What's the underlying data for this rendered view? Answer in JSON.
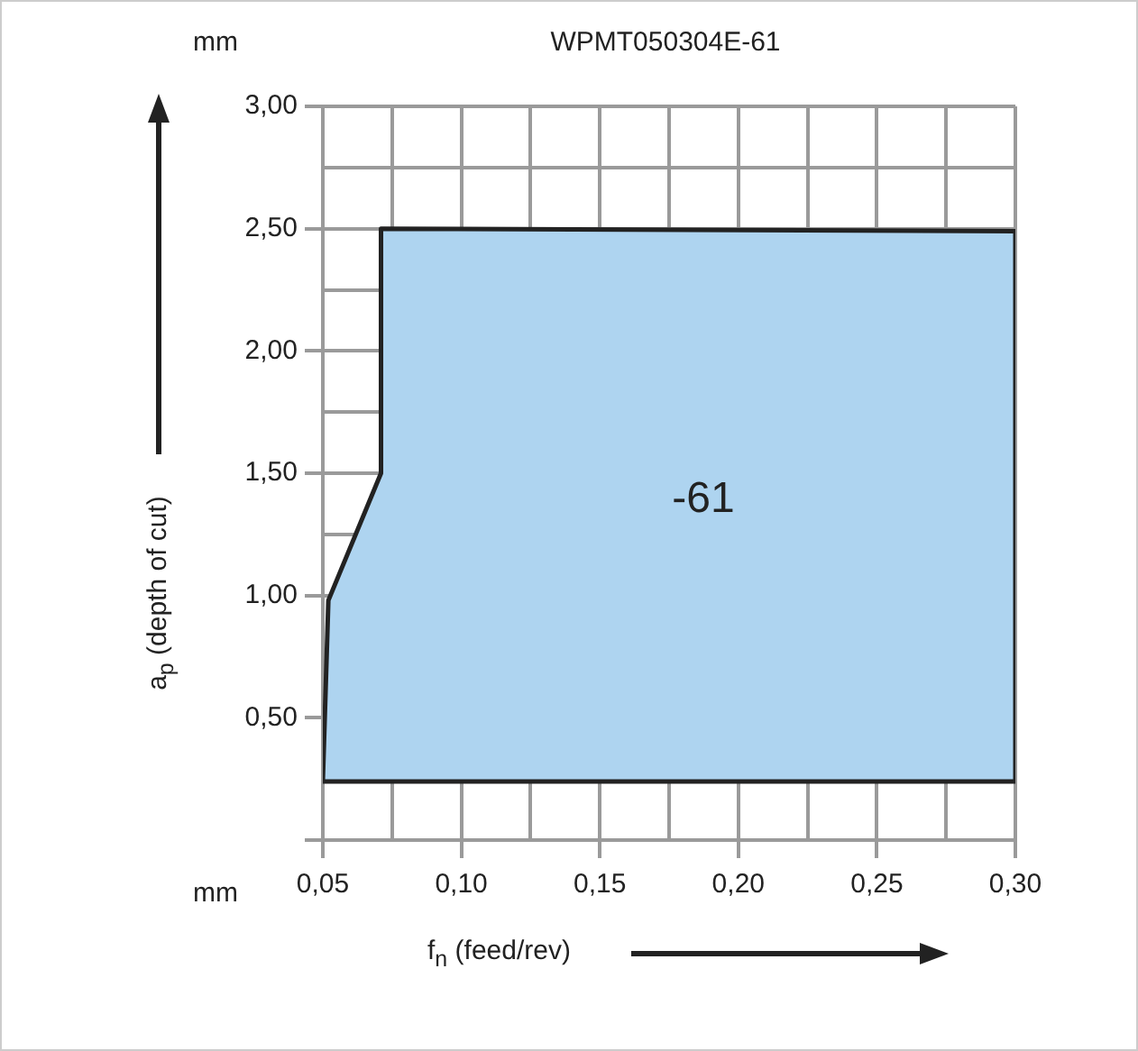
{
  "chart_data": {
    "type": "area",
    "title": "WPMT050304E-61",
    "xlabel": "f$_{n}$ (feed/rev)",
    "ylabel": "a$_{p}$ (depth of cut)",
    "series": [
      {
        "color": "#aed4f0",
        "x": [
          0.05,
          0.052,
          0.071,
          0.071,
          0.3,
          0.3,
          0.05
        ],
        "values": [
          0.24,
          0.98,
          1.5,
          2.5,
          2.49,
          0.24,
          0.24
        ]
      }
    ],
    "xlim": [
      0.05,
      0.3
    ],
    "ylim": [
      0,
      3
    ],
    "xticks": [
      {
        "value": 0.05,
        "label": "0,05"
      },
      {
        "value": 0.075,
        "label": null
      },
      {
        "value": 0.1,
        "label": "0,10"
      },
      {
        "value": 0.125,
        "label": null
      },
      {
        "value": 0.15,
        "label": "0,15"
      },
      {
        "value": 0.175,
        "label": null
      },
      {
        "value": 0.2,
        "label": "0,20"
      },
      {
        "value": 0.225,
        "label": null
      },
      {
        "value": 0.25,
        "label": "0,25"
      },
      {
        "value": 0.275,
        "label": null
      },
      {
        "value": 0.3,
        "label": "0,30"
      }
    ],
    "yticks": [
      {
        "value": 0,
        "label": null
      },
      {
        "value": 0.25,
        "label": null
      },
      {
        "value": 0.5,
        "label": "0,50"
      },
      {
        "value": 1,
        "label": "1,00"
      },
      {
        "value": 1.25,
        "label": null
      },
      {
        "value": 1.5,
        "label": "1,50"
      },
      {
        "value": 1.75,
        "label": null
      },
      {
        "value": 2,
        "label": "2,00"
      },
      {
        "value": 2.25,
        "label": null
      },
      {
        "value": 2.5,
        "label": "2,50"
      },
      {
        "value": 2.75,
        "label": null
      },
      {
        "value": 3,
        "label": "3,00"
      }
    ],
    "grid": true,
    "legend": false,
    "annotations": [
      "mm",
      "mm",
      "-61"
    ]
  }
}
